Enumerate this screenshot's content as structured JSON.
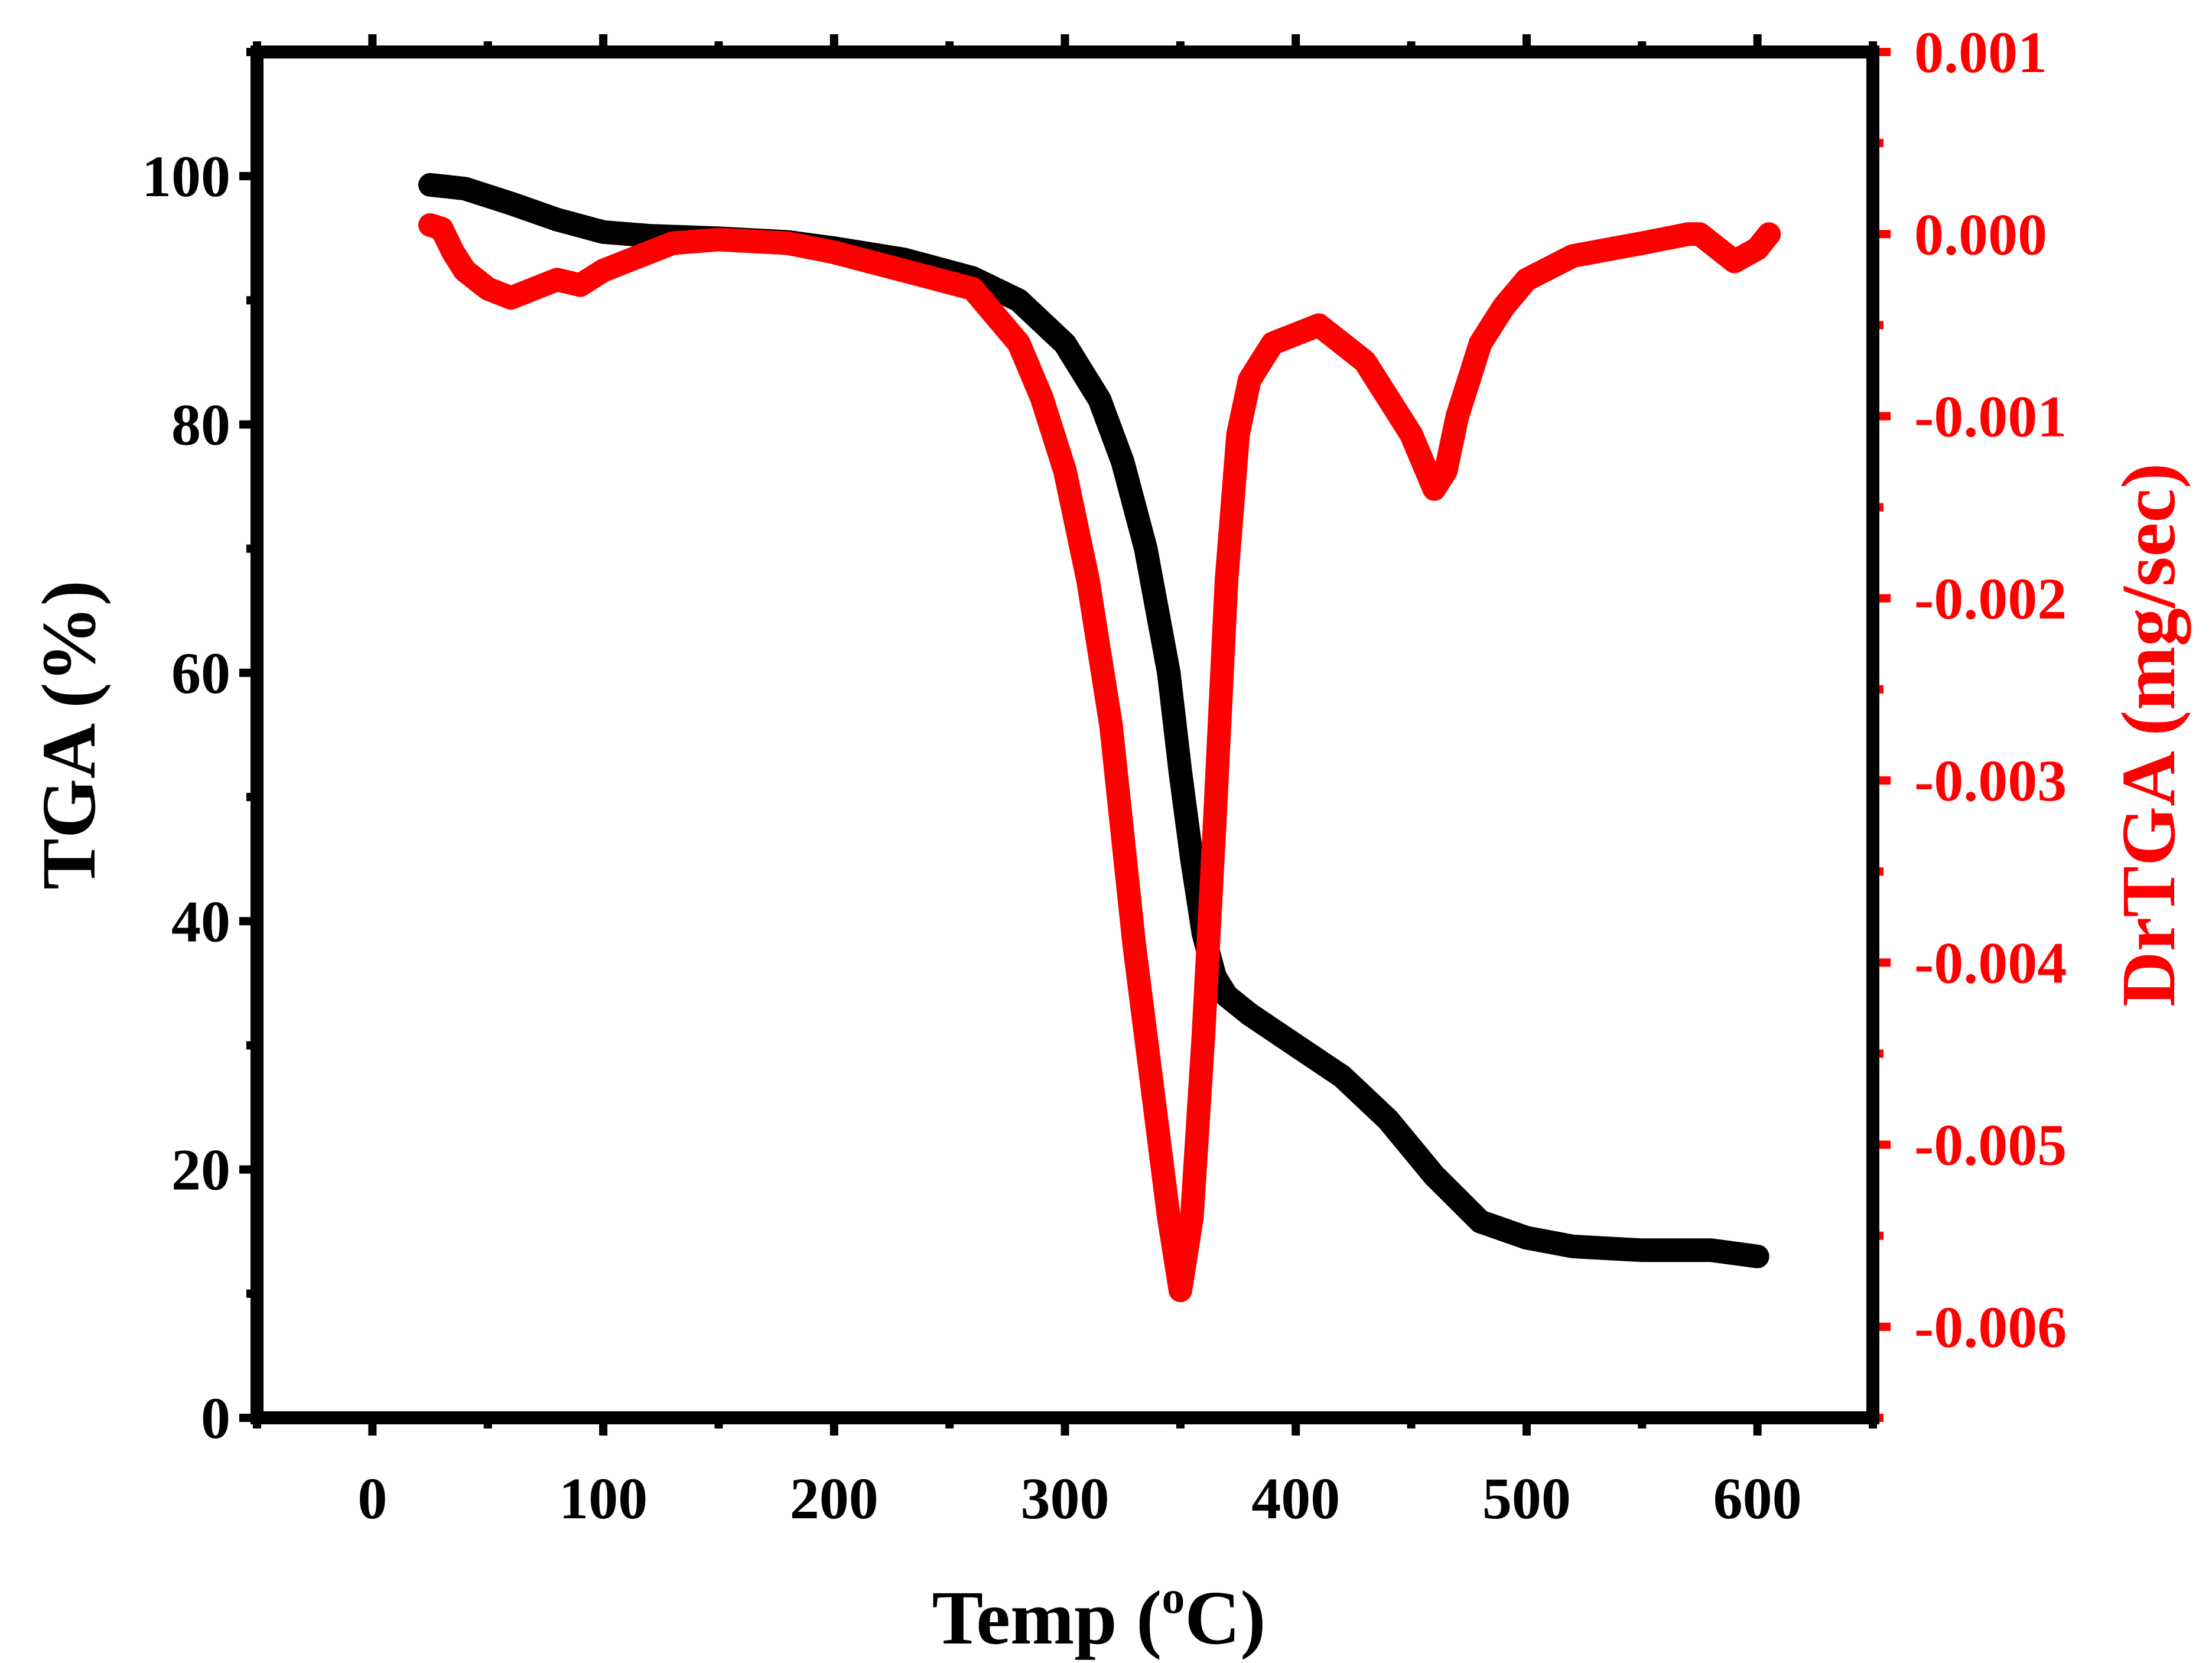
{
  "chart_data": {
    "type": "line",
    "title": "",
    "xlabel": {
      "main": "Temp (",
      "sup": "o",
      "end": "C)"
    },
    "ylabel_left": "TGA (%)",
    "ylabel_right": "DrTGA (mg/sec)",
    "xlim": [
      -50,
      650
    ],
    "ylim_left": [
      0,
      110
    ],
    "ylim_right": [
      -0.0065,
      0.001
    ],
    "x_ticks": [
      "0",
      "100",
      "200",
      "300",
      "400",
      "500",
      "600"
    ],
    "y_ticks_left": [
      "0",
      "20",
      "40",
      "60",
      "80",
      "100"
    ],
    "y_ticks_right": [
      "0.001",
      "0.000",
      "-0.001",
      "-0.002",
      "-0.003",
      "-0.004",
      "-0.005",
      "-0.006"
    ],
    "colors": {
      "tga": "#000000",
      "drtga": "#ff0000"
    },
    "series": [
      {
        "name": "TGA",
        "axis": "left",
        "color": "#000000",
        "x": [
          25,
          40,
          60,
          80,
          100,
          120,
          150,
          180,
          200,
          230,
          260,
          280,
          300,
          315,
          325,
          335,
          345,
          350,
          355,
          360,
          365,
          370,
          380,
          400,
          420,
          440,
          460,
          480,
          500,
          520,
          550,
          580,
          600
        ],
        "y": [
          99.3,
          99.0,
          97.8,
          96.5,
          95.5,
          95.2,
          95.0,
          94.7,
          94.2,
          93.3,
          91.8,
          90.0,
          86.5,
          82.0,
          77.0,
          70.0,
          60.0,
          52.0,
          45.0,
          39.0,
          35.5,
          34.0,
          32.5,
          30.0,
          27.5,
          24.0,
          19.5,
          15.8,
          14.5,
          13.8,
          13.5,
          13.5,
          13.0
        ]
      },
      {
        "name": "DrTGA",
        "axis": "right",
        "color": "#ff0000",
        "x": [
          25,
          30,
          35,
          40,
          50,
          60,
          70,
          80,
          90,
          100,
          110,
          130,
          150,
          180,
          200,
          230,
          260,
          280,
          290,
          300,
          310,
          320,
          330,
          340,
          345,
          350,
          355,
          360,
          365,
          370,
          375,
          380,
          390,
          400,
          410,
          420,
          430,
          440,
          450,
          460,
          465,
          470,
          475,
          480,
          490,
          500,
          520,
          550,
          570,
          575,
          580,
          585,
          590,
          600,
          605
        ],
        "y": [
          5e-05,
          3e-05,
          -0.0001,
          -0.0002,
          -0.0003,
          -0.00035,
          -0.0003,
          -0.00025,
          -0.00028,
          -0.0002,
          -0.00015,
          -5e-05,
          -3e-05,
          -5e-05,
          -0.0001,
          -0.0002,
          -0.0003,
          -0.0006,
          -0.0009,
          -0.0013,
          -0.0019,
          -0.0027,
          -0.0039,
          -0.0049,
          -0.0054,
          -0.0058,
          -0.0054,
          -0.0044,
          -0.0032,
          -0.0019,
          -0.0011,
          -0.0008,
          -0.0006,
          -0.00055,
          -0.0005,
          -0.0006,
          -0.0007,
          -0.0009,
          -0.0011,
          -0.0014,
          -0.0013,
          -0.001,
          -0.0008,
          -0.0006,
          -0.0004,
          -0.00025,
          -0.00012,
          -5e-05,
          0.0,
          0.0,
          -5e-05,
          -0.0001,
          -0.00015,
          -8e-05,
          0.0
        ]
      }
    ]
  }
}
